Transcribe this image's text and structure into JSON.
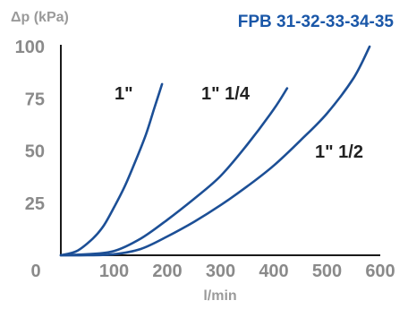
{
  "chart_data": {
    "type": "line",
    "title": "FPB 31-32-33-34-35",
    "xlabel": "l/min",
    "ylabel": "Δp (kPa)",
    "xlim": [
      0,
      600
    ],
    "ylim": [
      0,
      100
    ],
    "xticks": [
      0,
      100,
      200,
      300,
      400,
      500,
      600
    ],
    "yticks": [
      25,
      50,
      75,
      100
    ],
    "grid": false,
    "legend": "inline labels",
    "colors": {
      "line": "#1c4f96",
      "axis": "#1a1a1a",
      "tick": "#8a8a8a",
      "title": "#1a57a8"
    },
    "series": [
      {
        "name": "1\"",
        "x": [
          0,
          30,
          60,
          80,
          100,
          120,
          140,
          160,
          175,
          185,
          190
        ],
        "y": [
          0,
          2,
          8,
          14,
          23,
          33,
          45,
          58,
          70,
          78,
          82
        ]
      },
      {
        "name": "1\" 1/4",
        "x": [
          0,
          50,
          100,
          150,
          200,
          250,
          300,
          350,
          400,
          425
        ],
        "y": [
          0,
          0.5,
          2,
          8,
          17,
          27,
          38,
          53,
          70,
          80
        ]
      },
      {
        "name": "1\" 1/2",
        "x": [
          0,
          50,
          100,
          150,
          200,
          250,
          300,
          350,
          400,
          450,
          500,
          550,
          580
        ],
        "y": [
          0,
          0,
          0.5,
          3,
          9,
          16,
          24,
          33,
          43,
          55,
          68,
          85,
          100
        ]
      }
    ]
  }
}
